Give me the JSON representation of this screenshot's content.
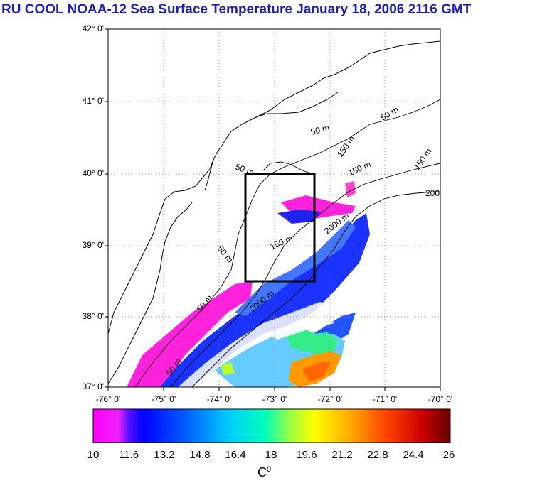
{
  "title": "RU COOL  NOAA-12 Sea Surface Temperature January 18, 2006 2116 GMT",
  "lat_labels": [
    "42° 0'",
    "41° 0'",
    "40° 0'",
    "39° 0'",
    "38° 0'",
    "37° 0'"
  ],
  "lon_labels": [
    "-76° 0'",
    "-75° 0'",
    "-74° 0'",
    "-73° 0'",
    "-72° 0'",
    "-71° 0'",
    "-70° 0'"
  ],
  "contour_labels": {
    "c1": "50 m",
    "c2": "50 m",
    "c3": "50 m",
    "c4": "50 m",
    "c5": "50 m",
    "c6": "150 m",
    "c7": "150 m",
    "c8": "150 m",
    "c9": "2000 m",
    "c10": "2000 m",
    "c11": "200",
    "c12": "150 m",
    "c13": "50 m"
  },
  "colorbar": {
    "ticks": [
      "10",
      "11.6",
      "13.2",
      "14.8",
      "16.4",
      "18",
      "19.6",
      "21.2",
      "22.8",
      "24.4",
      "26"
    ],
    "unit": "C",
    "unit_sup": "0",
    "colors": [
      "#ff00ff",
      "#cc33ff",
      "#3300ff",
      "#0000ff",
      "#0066ff",
      "#00ccff",
      "#00ffcc",
      "#66ff66",
      "#ccff33",
      "#ffff00",
      "#ffcc00",
      "#ff8800",
      "#ff3300",
      "#cc0000",
      "#660000"
    ]
  },
  "palette": {
    "title": "#1f1fb4",
    "land": "#ffffff",
    "frame": "#000000"
  }
}
